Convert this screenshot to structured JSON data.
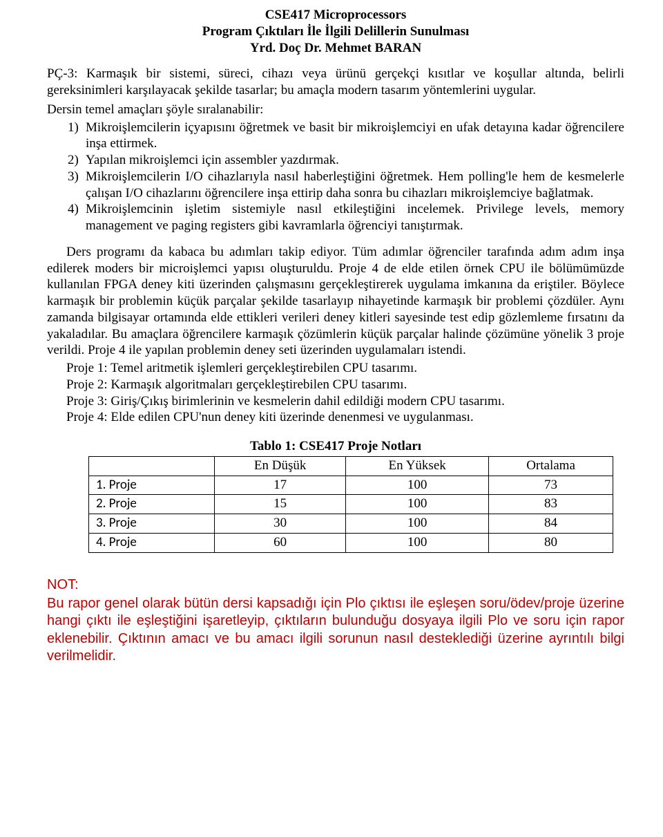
{
  "header": {
    "line1": "CSE417 Microprocessors",
    "line2": "Program Çıktıları İle İlgili Delillerin Sunulması",
    "line3": "Yrd. Doç Dr. Mehmet BARAN"
  },
  "pc3": "PÇ-3: Karmaşık bir sistemi, süreci, cihazı veya ürünü gerçekçi kısıtlar ve koşullar altında, belirli gereksinimleri karşılayacak şekilde tasarlar; bu amaçla modern tasarım yöntemlerini uygular.",
  "intro": "Dersin temel amaçları şöyle sıralanabilir:",
  "objectives": [
    "Mikroişlemcilerin içyapısını öğretmek ve basit bir mikroişlemciyi en ufak detayına kadar öğrencilere inşa ettirmek.",
    "Yapılan mikroişlemci için assembler yazdırmak.",
    "Mikroişlemcilerin I/O cihazlarıyla nasıl haberleştiğini öğretmek. Hem polling'le hem de kesmelerle çalışan I/O cihazlarını öğrencilere inşa ettirip daha sonra bu cihazları mikroişlemciye bağlatmak.",
    "Mikroişlemcinin işletim sistemiyle nasıl etkileştiğini incelemek. Privilege levels, memory management ve paging registers gibi kavramlarla öğrenciyi tanıştırmak."
  ],
  "paragraph": "Ders programı da kabaca bu adımları takip ediyor.  Tüm adımlar öğrenciler tarafında adım adım inşa edilerek moders bir microişlemci yapısı oluşturuldu. Proje 4 de elde etilen örnek CPU ile bölümümüzde kullanılan FPGA deney kiti üzerinden çalışmasını gerçekleştirerek uygulama imkanına da eriştiler. Böylece karmaşık bir problemin küçük parçalar şekilde tasarlayıp nihayetinde karmaşık bir problemi çözdüler. Aynı zamanda bilgisayar ortamında elde ettikleri verileri deney kitleri sayesinde test edip gözlemleme fırsatını da yakaladılar. Bu amaçlara öğrencilere karmaşık çözümlerin küçük parçalar halinde çözümüne yönelik 3 proje verildi. Proje 4 ile yapılan problemin deney seti üzerinden uygulamaları istendi.",
  "projects": [
    "Proje 1: Temel aritmetik işlemleri gerçekleştirebilen CPU tasarımı.",
    "Proje 2: Karmaşık algoritmaları gerçekleştirebilen CPU tasarımı.",
    "Proje 3: Giriş/Çıkış birimlerinin ve kesmelerin dahil edildiği modern CPU tasarımı.",
    "Proje 4: Elde edilen CPU'nun deney kiti üzerinde denenmesi ve uygulanması."
  ],
  "table": {
    "title": "Tablo 1: CSE417 Proje Notları",
    "headers": [
      "",
      "En Düşük",
      "En Yüksek",
      "Ortalama"
    ],
    "rows": [
      [
        "1. Proje",
        "17",
        "100",
        "73"
      ],
      [
        "2. Proje",
        "15",
        "100",
        "83"
      ],
      [
        "3. Proje",
        "30",
        "100",
        "84"
      ],
      [
        "4. Proje",
        "60",
        "100",
        "80"
      ]
    ]
  },
  "note": {
    "label": "NOT:",
    "body": "Bu rapor genel olarak bütün dersi kapsadığı için Plo çıktısı ile eşleşen soru/ödev/proje üzerine hangi çıktı ile eşleştiğini işaretleyip, çıktıların bulunduğu dosyaya ilgili Plo ve soru için rapor eklenebilir. Çıktının amacı ve bu amacı ilgili sorunun nasıl desteklediği üzerine ayrıntılı bilgi verilmelidir."
  }
}
